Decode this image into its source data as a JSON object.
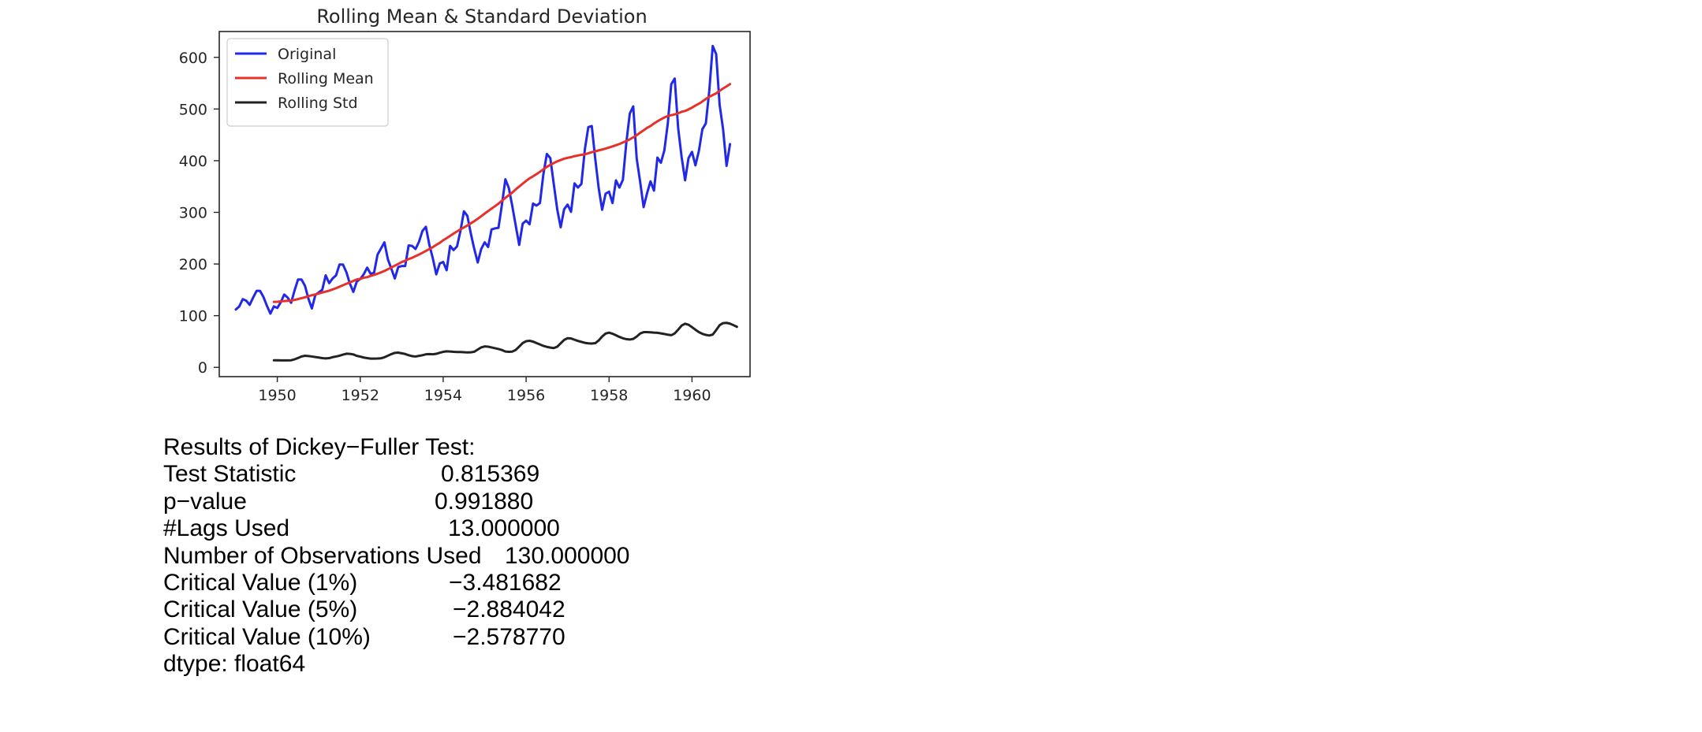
{
  "chart_data": {
    "type": "line",
    "title": "Rolling Mean & Standard Deviation",
    "xlabel": "",
    "ylabel": "",
    "xlim": [
      1948.6,
      1961.4
    ],
    "ylim": [
      -18,
      650
    ],
    "x_ticks": [
      "1950",
      "1952",
      "1954",
      "1956",
      "1958",
      "1960"
    ],
    "y_ticks": [
      "0",
      "100",
      "200",
      "300",
      "400",
      "500",
      "600"
    ],
    "legend_position": "top-left",
    "grid": false,
    "x_start": "1949-01",
    "x_step": "month",
    "series": [
      {
        "name": "Original",
        "color": "#2228e8",
        "x_start": "1949-01",
        "values": [
          112,
          118,
          132,
          129,
          121,
          135,
          148,
          148,
          136,
          119,
          104,
          118,
          115,
          126,
          141,
          135,
          125,
          149,
          170,
          170,
          158,
          133,
          114,
          140,
          145,
          150,
          178,
          163,
          172,
          178,
          199,
          199,
          184,
          162,
          146,
          166,
          171,
          180,
          193,
          181,
          183,
          218,
          230,
          242,
          209,
          191,
          172,
          194,
          196,
          196,
          236,
          235,
          229,
          243,
          264,
          272,
          237,
          211,
          180,
          201,
          204,
          188,
          235,
          227,
          234,
          264,
          302,
          293,
          259,
          229,
          203,
          229,
          242,
          233,
          267,
          269,
          270,
          315,
          364,
          347,
          312,
          274,
          237,
          278,
          284,
          277,
          317,
          313,
          318,
          374,
          413,
          405,
          355,
          306,
          271,
          306,
          315,
          301,
          356,
          348,
          355,
          422,
          465,
          467,
          404,
          347,
          305,
          336,
          340,
          318,
          362,
          348,
          363,
          435,
          491,
          505,
          404,
          359,
          310,
          337,
          360,
          342,
          406,
          396,
          420,
          472,
          548,
          559,
          463,
          407,
          362,
          405,
          417,
          391,
          419,
          461,
          472,
          535,
          622,
          606,
          508,
          461,
          390,
          432
        ]
      },
      {
        "name": "Rolling Mean",
        "color": "#e8302a",
        "x_start": "1949-12",
        "values": [
          126.7,
          126.9,
          127.6,
          128.3,
          128.8,
          129.2,
          130.5,
          132.2,
          133.8,
          135.6,
          137.8,
          139.6,
          141.0,
          143.0,
          144.8,
          146.6,
          148.4,
          150.8,
          153.2,
          156.1,
          159.0,
          161.8,
          164.5,
          167.2,
          170.2,
          171.1,
          173.5,
          174.5,
          176.9,
          179.0,
          181.2,
          183.8,
          186.6,
          189.9,
          193.3,
          196.8,
          200.1,
          203.8,
          206.3,
          209.6,
          212.0,
          215.1,
          218.3,
          221.8,
          225.3,
          229.0,
          232.6,
          237.0,
          241.0,
          246.0,
          250.0,
          254.5,
          258.9,
          263.0,
          267.2,
          270.8,
          274.6,
          278.7,
          282.9,
          287.6,
          292.5,
          297.5,
          302.5,
          307.2,
          311.9,
          316.9,
          322.4,
          328.1,
          333.2,
          338.3,
          344.5,
          350.0,
          355.5,
          360.9,
          365.8,
          369.7,
          374.0,
          378.4,
          383.3,
          388.0,
          391.9,
          395.4,
          398.7,
          401.3,
          403.8,
          405.5,
          406.9,
          408.7,
          410.1,
          411.3,
          412.3,
          414.3,
          416.5,
          418.2,
          419.9,
          421.6,
          423.4,
          425.6,
          427.6,
          429.9,
          432.3,
          435.1,
          438.2,
          441.3,
          445.1,
          449.4,
          454.2,
          458.8,
          463.6,
          467.1,
          472.0,
          476.2,
          480.1,
          483.6,
          486.5,
          488.1,
          489.6,
          491.8,
          494.7,
          496.2,
          499.2,
          502.8,
          506.7,
          510.3,
          514.5,
          519.5,
          523.5,
          527.1,
          530.3,
          535.1,
          539.8,
          543.8,
          548.2
        ]
      },
      {
        "name": "Rolling Std",
        "color": "#222222",
        "x_start": "1949-12",
        "values": [
          13.7,
          13.7,
          13.5,
          13.5,
          13.4,
          13.7,
          15.5,
          18.1,
          21.0,
          22.4,
          21.9,
          21.0,
          20.0,
          19.0,
          17.8,
          17.3,
          17.8,
          19.7,
          21.0,
          22.5,
          24.6,
          26.4,
          26.0,
          25.0,
          22.2,
          20.8,
          19.0,
          17.8,
          16.9,
          16.8,
          17.0,
          17.5,
          19.5,
          22.5,
          25.6,
          28.0,
          28.5,
          27.2,
          25.8,
          23.5,
          21.7,
          21.0,
          22.2,
          23.5,
          25.2,
          25.6,
          25.2,
          26.2,
          28.2,
          30.0,
          31.0,
          30.6,
          30.0,
          29.6,
          29.6,
          29.2,
          28.8,
          29.0,
          30.2,
          34.5,
          38.6,
          40.5,
          40.0,
          38.5,
          37.0,
          35.5,
          33.5,
          30.6,
          30.0,
          30.5,
          33.7,
          40.3,
          47.0,
          50.6,
          51.4,
          49.9,
          47.0,
          44.3,
          41.5,
          39.6,
          38.2,
          37.3,
          39.9,
          46.5,
          53.1,
          56.4,
          55.9,
          53.5,
          51.1,
          49.3,
          47.4,
          46.4,
          46.0,
          46.8,
          52.0,
          59.6,
          65.4,
          67.2,
          65.1,
          62.0,
          58.9,
          56.3,
          54.6,
          53.8,
          55.0,
          59.5,
          65.5,
          68.1,
          68.1,
          67.8,
          67.2,
          66.9,
          65.7,
          64.6,
          63.2,
          62.2,
          65.6,
          73.0,
          80.8,
          84.4,
          82.4,
          77.8,
          72.8,
          68.2,
          64.9,
          62.8,
          61.6,
          63.4,
          72.1,
          81.6,
          85.6,
          86.1,
          84.6,
          81.6,
          78.4
        ]
      }
    ]
  },
  "adf_results": {
    "header": "Results of Dickey−Fuller Test:",
    "rows": [
      {
        "label": "Test Statistic",
        "value": "0.815369"
      },
      {
        "label": "p−value",
        "value": "0.991880"
      },
      {
        "label": "#Lags Used",
        "value": "13.000000"
      },
      {
        "label": "Number of Observations Used",
        "value": "130.000000"
      },
      {
        "label": "Critical Value (1%)",
        "value": "−3.481682"
      },
      {
        "label": "Critical Value (5%)",
        "value": "−2.884042"
      },
      {
        "label": "Critical Value (10%)",
        "value": "−2.578770"
      }
    ],
    "dtype": "dtype: float64"
  }
}
